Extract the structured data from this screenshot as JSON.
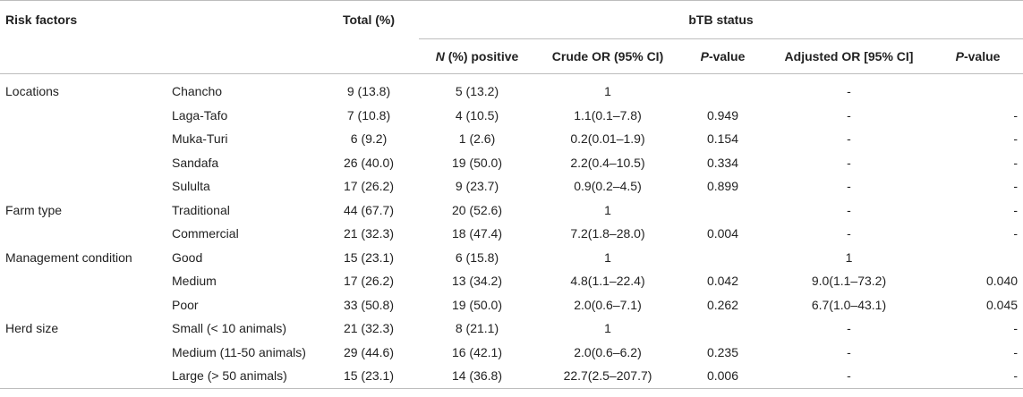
{
  "header": {
    "risk_factors": "Risk factors",
    "total": "Total (%)",
    "group": "bTB status",
    "n_positive_italic": "N",
    "n_positive_rest": " (%) positive",
    "crude_or": "Crude OR (95% CI)",
    "p_value_italic": "P",
    "p_value_rest": "-value",
    "adjusted_or": "Adjusted OR [95% CI]",
    "p_value2_italic": "P",
    "p_value2_rest": "-value"
  },
  "rows": [
    {
      "factor": "Locations",
      "level": "Chancho",
      "total": "9 (13.8)",
      "positive": "5 (13.2)",
      "crude_or": "1",
      "p": "",
      "adj_or": "-",
      "adj_p": ""
    },
    {
      "factor": "",
      "level": "Laga-Tafo",
      "total": "7 (10.8)",
      "positive": "4 (10.5)",
      "crude_or": "1.1(0.1–7.8)",
      "p": "0.949",
      "adj_or": "-",
      "adj_p": "-"
    },
    {
      "factor": "",
      "level": "Muka-Turi",
      "total": "6 (9.2)",
      "positive": "1 (2.6)",
      "crude_or": "0.2(0.01–1.9)",
      "p": "0.154",
      "adj_or": "-",
      "adj_p": "-"
    },
    {
      "factor": "",
      "level": "Sandafa",
      "total": "26 (40.0)",
      "positive": "19 (50.0)",
      "crude_or": "2.2(0.4–10.5)",
      "p": "0.334",
      "adj_or": "-",
      "adj_p": "-"
    },
    {
      "factor": "",
      "level": "Sululta",
      "total": "17 (26.2)",
      "positive": "9 (23.7)",
      "crude_or": "0.9(0.2–4.5)",
      "p": "0.899",
      "adj_or": "-",
      "adj_p": "-"
    },
    {
      "factor": "Farm type",
      "level": "Traditional",
      "total": "44 (67.7)",
      "positive": "20 (52.6)",
      "crude_or": "1",
      "p": "",
      "adj_or": "-",
      "adj_p": "-"
    },
    {
      "factor": "",
      "level": "Commercial",
      "total": "21 (32.3)",
      "positive": "18 (47.4)",
      "crude_or": "7.2(1.8–28.0)",
      "p": "0.004",
      "adj_or": "-",
      "adj_p": "-"
    },
    {
      "factor": "Management condition",
      "level": "Good",
      "total": "15 (23.1)",
      "positive": "6 (15.8)",
      "crude_or": "1",
      "p": "",
      "adj_or": "1",
      "adj_p": ""
    },
    {
      "factor": "",
      "level": "Medium",
      "total": "17 (26.2)",
      "positive": "13 (34.2)",
      "crude_or": "4.8(1.1–22.4)",
      "p": "0.042",
      "adj_or": "9.0(1.1–73.2)",
      "adj_p": "0.040"
    },
    {
      "factor": "",
      "level": "Poor",
      "total": "33 (50.8)",
      "positive": "19 (50.0)",
      "crude_or": "2.0(0.6–7.1)",
      "p": "0.262",
      "adj_or": "6.7(1.0–43.1)",
      "adj_p": "0.045"
    },
    {
      "factor": "Herd size",
      "level": "Small (< 10 animals)",
      "total": "21 (32.3)",
      "positive": "8 (21.1)",
      "crude_or": "1",
      "p": "",
      "adj_or": "-",
      "adj_p": "-"
    },
    {
      "factor": "",
      "level": "Medium (11-50 animals)",
      "total": "29 (44.6)",
      "positive": "16 (42.1)",
      "crude_or": "2.0(0.6–6.2)",
      "p": "0.235",
      "adj_or": "-",
      "adj_p": "-"
    },
    {
      "factor": "",
      "level": "Large (> 50 animals)",
      "total": "15 (23.1)",
      "positive": "14 (36.8)",
      "crude_or": "22.7(2.5–207.7)",
      "p": "0.006",
      "adj_or": "-",
      "adj_p": "-"
    }
  ]
}
